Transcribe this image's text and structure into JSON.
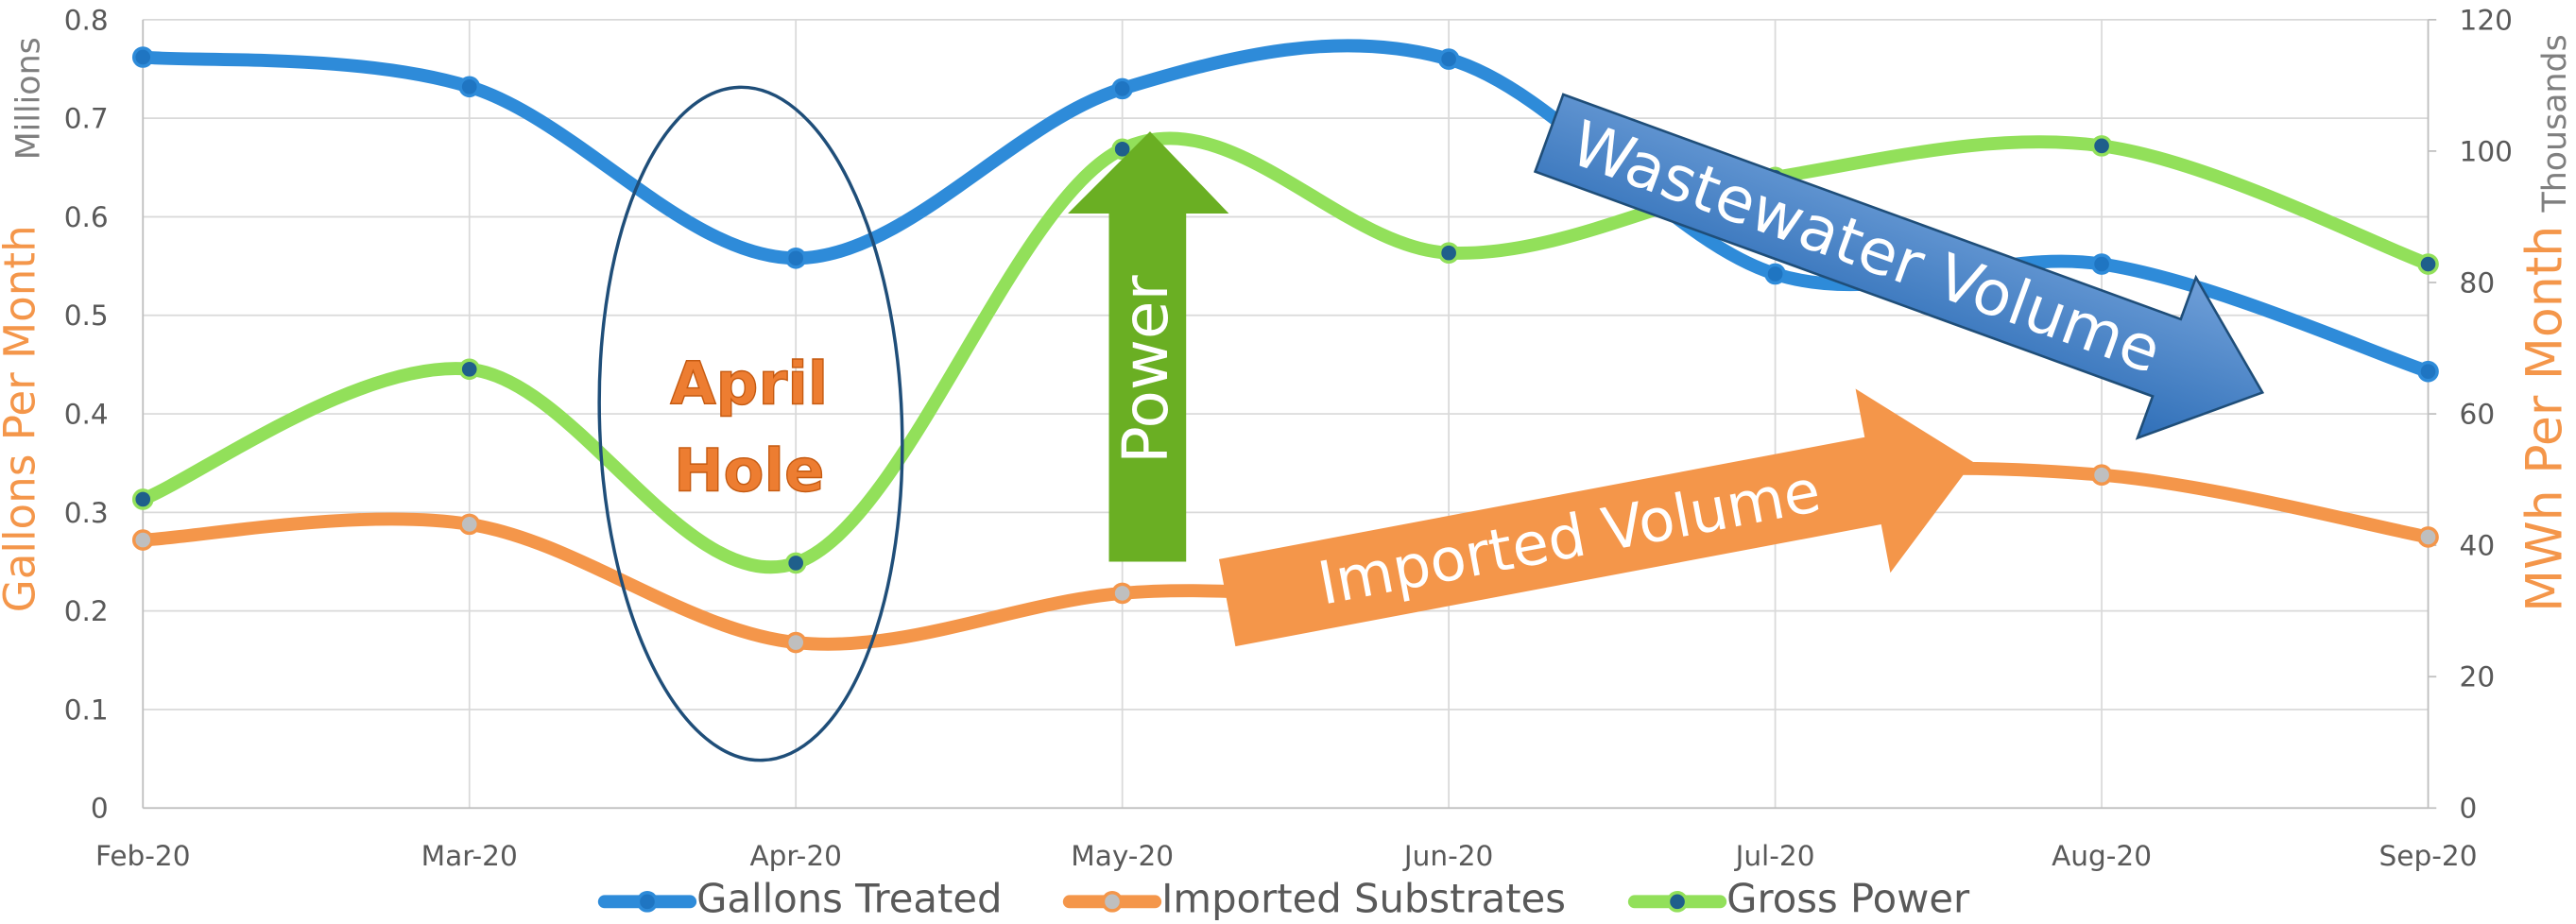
{
  "chart_data": {
    "type": "line",
    "categories": [
      "Feb-20",
      "Mar-20",
      "Apr-20",
      "May-20",
      "Jun-20",
      "Jul-20",
      "Aug-20",
      "Sep-20"
    ],
    "series": [
      {
        "name": "Gallons Treated",
        "color": "#2e8bd9",
        "marker_color": "#1f75c2",
        "axis": "y",
        "values": [
          0.762,
          0.732,
          0.558,
          0.73,
          0.76,
          0.542,
          0.552,
          0.443
        ]
      },
      {
        "name": "Imported Substrates",
        "color": "#f4964a",
        "marker_color": "#bfbfbf",
        "axis": "y",
        "values": [
          0.272,
          0.288,
          0.168,
          0.218,
          0.225,
          0.33,
          0.338,
          0.275
        ]
      },
      {
        "name": "Gross Power",
        "color": "#92e05a",
        "marker_color": "#1f5f8b",
        "axis": "y2",
        "values": [
          47,
          66.8,
          37.3,
          100.3,
          84.5,
          96,
          100.8,
          82.8
        ]
      }
    ],
    "ylim": [
      0,
      0.8
    ],
    "yticks": [
      0,
      0.1,
      0.2,
      0.3,
      0.4,
      0.5,
      0.6,
      0.7,
      0.8
    ],
    "y2lim": [
      0,
      120
    ],
    "y2ticks": [
      0,
      20,
      40,
      60,
      80,
      100,
      120
    ],
    "y_unit": "Millions",
    "y_label": "Gallons Per Month",
    "y2_unit": "Thousands",
    "y2_label": "MWh Per Month",
    "annotations": {
      "april_hole": [
        "April",
        "Hole"
      ],
      "power": "Power",
      "wastewater": "Wastewater Volume",
      "imported": "Imported Volume"
    },
    "grid": true,
    "legend": "bottom"
  }
}
